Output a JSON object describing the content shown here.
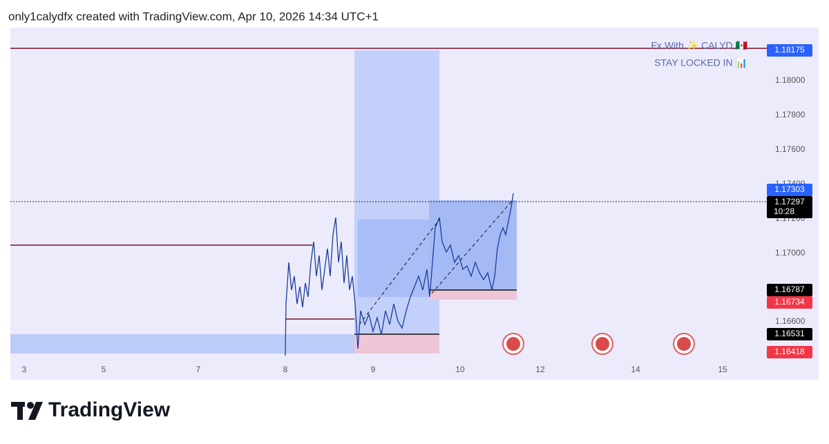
{
  "header": {
    "text": "only1calydfx created with TradingView.com, Apr 10, 2026 14:34 UTC+1"
  },
  "watermark": {
    "line1": "Fx With ✨ CALYD 🇲🇽",
    "line2": "STAY LOCKED IN 📊"
  },
  "price_axis": {
    "labels": [
      "1.18000",
      "1.17800",
      "1.17600",
      "1.17400",
      "1.17200",
      "1.17000",
      "1.16600"
    ]
  },
  "badges": {
    "top": "1.18175",
    "high": "1.17303",
    "last": "1.17297",
    "countdown": "10:28",
    "b1": "1.16787",
    "r1": "1.16734",
    "b2": "1.16531",
    "r2": "1.16418"
  },
  "time_axis": {
    "labels": [
      "3",
      "5",
      "7",
      "8",
      "9",
      "10",
      "12",
      "14",
      "15"
    ]
  },
  "footer": {
    "logo": "TradingView"
  }
}
